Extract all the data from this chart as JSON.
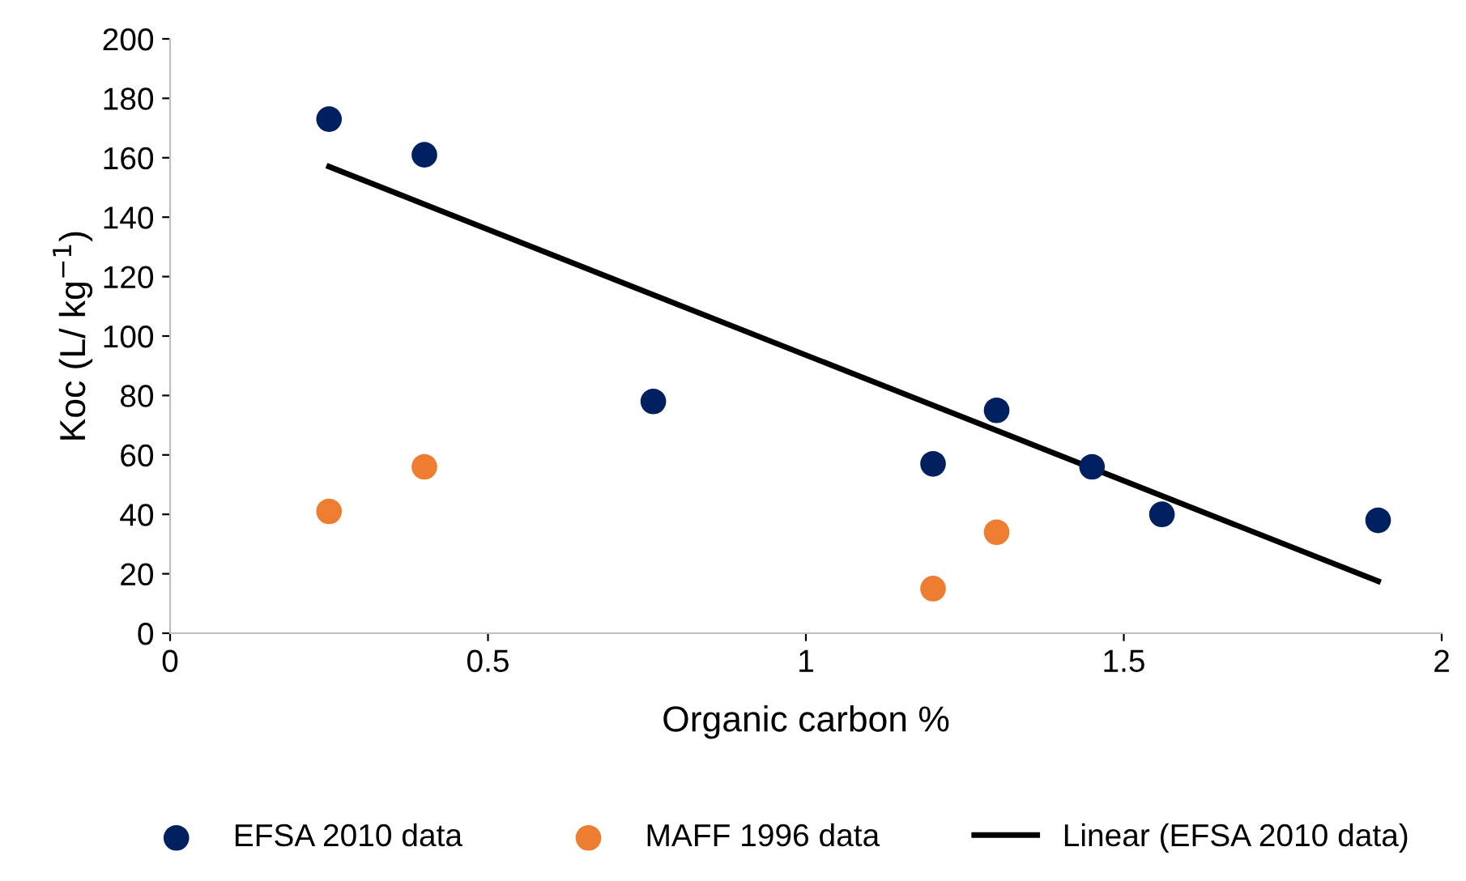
{
  "chart_data": {
    "type": "scatter",
    "xlabel": "Organic carbon %",
    "ylabel": "Koc (L/ kg$^{−1}$)",
    "xlim": [
      0,
      2
    ],
    "xticks": [
      0,
      0.5,
      1,
      1.5,
      2
    ],
    "ylim": [
      0,
      200
    ],
    "yticks": [
      0,
      20,
      40,
      60,
      80,
      100,
      120,
      140,
      160,
      180,
      200
    ],
    "grid": false,
    "legend": "bottom",
    "series": [
      {
        "name": "EFSA 2010 data",
        "color": "#002060",
        "marker": "circle",
        "x": [
          0.25,
          0.4,
          0.76,
          1.2,
          1.3,
          1.45,
          1.56,
          1.9
        ],
        "values": [
          173,
          161,
          78,
          57,
          75,
          56,
          40,
          38
        ]
      },
      {
        "name": "MAFF 1996 data",
        "color": "#ed7d31",
        "marker": "circle",
        "x": [
          0.25,
          0.4,
          1.2,
          1.3
        ],
        "values": [
          41,
          56,
          15,
          34
        ]
      },
      {
        "name": "Linear (EFSA 2010 data)",
        "type": "line",
        "color": "#000000",
        "line_style": "solid",
        "marker": "none",
        "x": [
          0.25,
          1.9
        ],
        "values": [
          157,
          17.5
        ]
      }
    ]
  }
}
